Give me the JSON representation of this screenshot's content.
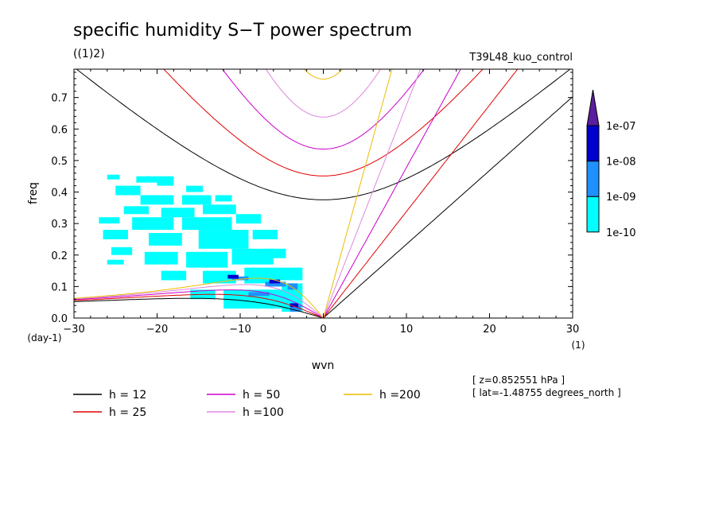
{
  "chart_data": {
    "type": "contour",
    "title": "specific humidity S−T power spectrum",
    "subtitle_left": "((1)2)",
    "subtitle_right": "T39L48_kuo_control",
    "xlabel": "wvn",
    "x_unit": "(1)",
    "ylabel": "freq",
    "y_unit": "(day-1)",
    "xlim": [
      -30,
      30
    ],
    "ylim": [
      0,
      0.79
    ],
    "x_ticks": [
      -30,
      -20,
      -10,
      0,
      10,
      20,
      30
    ],
    "x_tick_labels": [
      "−30",
      "−20",
      "−10",
      "0",
      "10",
      "20",
      "30"
    ],
    "y_ticks": [
      0.0,
      0.1,
      0.2,
      0.3,
      0.4,
      0.5,
      0.6,
      0.7
    ],
    "y_tick_labels": [
      "0.0",
      "0.1",
      "0.2",
      "0.3",
      "0.4",
      "0.5",
      "0.6",
      "0.7"
    ],
    "colorbar": {
      "levels": [
        "1e-10",
        "1e-09",
        "1e-08",
        "1e-07"
      ],
      "colors": [
        "#00ffff",
        "#1e90ff",
        "#0000cd",
        "#5a1e9e"
      ]
    },
    "dispersion_curves": [
      {
        "name": "h = 12",
        "h": 12,
        "color": "#000000"
      },
      {
        "name": "h = 25",
        "h": 25,
        "color": "#e00000"
      },
      {
        "name": "h = 50",
        "h": 50,
        "color": "#cc00cc"
      },
      {
        "name": "h =100",
        "h": 100,
        "color": "#dd88dd"
      },
      {
        "name": "h =200",
        "h": 200,
        "color": "#eebb00"
      }
    ],
    "info_lines": [
      "[ z=0.852551 hPa ]",
      "[ lat=-1.48755 degrees_north ]"
    ],
    "shaded_patches": [
      {
        "x": -26.0,
        "y": 0.44,
        "w": 1.5,
        "h": 0.015,
        "level": 0
      },
      {
        "x": -22.5,
        "y": 0.43,
        "w": 2.5,
        "h": 0.02,
        "level": 0
      },
      {
        "x": -20.0,
        "y": 0.42,
        "w": 2.0,
        "h": 0.03,
        "level": 0
      },
      {
        "x": -25.0,
        "y": 0.39,
        "w": 3.0,
        "h": 0.03,
        "level": 0
      },
      {
        "x": -16.5,
        "y": 0.4,
        "w": 2.0,
        "h": 0.02,
        "level": 0
      },
      {
        "x": -22.0,
        "y": 0.36,
        "w": 4.0,
        "h": 0.03,
        "level": 0
      },
      {
        "x": -17.0,
        "y": 0.36,
        "w": 3.5,
        "h": 0.03,
        "level": 0
      },
      {
        "x": -13.0,
        "y": 0.37,
        "w": 2.0,
        "h": 0.02,
        "level": 0
      },
      {
        "x": -24.0,
        "y": 0.33,
        "w": 3.0,
        "h": 0.025,
        "level": 0
      },
      {
        "x": -19.5,
        "y": 0.32,
        "w": 4.0,
        "h": 0.03,
        "level": 0
      },
      {
        "x": -14.5,
        "y": 0.33,
        "w": 4.0,
        "h": 0.03,
        "level": 0
      },
      {
        "x": -27.0,
        "y": 0.3,
        "w": 2.5,
        "h": 0.02,
        "level": 0
      },
      {
        "x": -23.0,
        "y": 0.28,
        "w": 5.0,
        "h": 0.04,
        "level": 0
      },
      {
        "x": -17.0,
        "y": 0.28,
        "w": 6.0,
        "h": 0.04,
        "level": 0
      },
      {
        "x": -10.5,
        "y": 0.3,
        "w": 3.0,
        "h": 0.03,
        "level": 0
      },
      {
        "x": -26.5,
        "y": 0.25,
        "w": 3.0,
        "h": 0.03,
        "level": 0
      },
      {
        "x": -21.0,
        "y": 0.23,
        "w": 4.0,
        "h": 0.04,
        "level": 0
      },
      {
        "x": -15.0,
        "y": 0.22,
        "w": 6.0,
        "h": 0.06,
        "level": 0
      },
      {
        "x": -8.5,
        "y": 0.25,
        "w": 3.0,
        "h": 0.03,
        "level": 0
      },
      {
        "x": -25.5,
        "y": 0.2,
        "w": 2.5,
        "h": 0.025,
        "level": 0
      },
      {
        "x": -21.5,
        "y": 0.17,
        "w": 4.0,
        "h": 0.04,
        "level": 0
      },
      {
        "x": -16.5,
        "y": 0.16,
        "w": 5.0,
        "h": 0.05,
        "level": 0
      },
      {
        "x": -11.0,
        "y": 0.17,
        "w": 5.0,
        "h": 0.05,
        "level": 0
      },
      {
        "x": -7.0,
        "y": 0.19,
        "w": 2.5,
        "h": 0.03,
        "level": 0
      },
      {
        "x": -19.5,
        "y": 0.12,
        "w": 3.0,
        "h": 0.03,
        "level": 0
      },
      {
        "x": -14.5,
        "y": 0.11,
        "w": 4.0,
        "h": 0.04,
        "level": 0
      },
      {
        "x": -9.5,
        "y": 0.11,
        "w": 4.0,
        "h": 0.05,
        "level": 0
      },
      {
        "x": -5.5,
        "y": 0.12,
        "w": 3.0,
        "h": 0.04,
        "level": 0
      },
      {
        "x": -16.0,
        "y": 0.06,
        "w": 3.0,
        "h": 0.03,
        "level": 0
      },
      {
        "x": -12.0,
        "y": 0.03,
        "w": 9.0,
        "h": 0.06,
        "level": 0
      },
      {
        "x": -5.0,
        "y": 0.02,
        "w": 2.5,
        "h": 0.09,
        "level": 0
      },
      {
        "x": -26.0,
        "y": 0.17,
        "w": 2.0,
        "h": 0.015,
        "level": 0
      },
      {
        "x": -11.0,
        "y": 0.12,
        "w": 2.0,
        "h": 0.012,
        "level": 1
      },
      {
        "x": -7.0,
        "y": 0.1,
        "w": 2.5,
        "h": 0.015,
        "level": 1
      },
      {
        "x": -4.3,
        "y": 0.09,
        "w": 1.2,
        "h": 0.02,
        "level": 1
      },
      {
        "x": -9.0,
        "y": 0.07,
        "w": 2.5,
        "h": 0.012,
        "level": 1
      },
      {
        "x": -4.0,
        "y": 0.02,
        "w": 1.3,
        "h": 0.02,
        "level": 1
      },
      {
        "x": -11.5,
        "y": 0.125,
        "w": 1.3,
        "h": 0.012,
        "level": 2
      },
      {
        "x": -6.5,
        "y": 0.11,
        "w": 1.3,
        "h": 0.012,
        "level": 2
      },
      {
        "x": -4.0,
        "y": 0.035,
        "w": 1.0,
        "h": 0.012,
        "level": 2
      }
    ]
  }
}
